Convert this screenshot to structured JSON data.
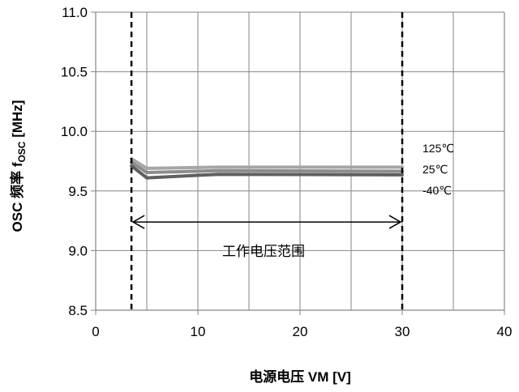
{
  "chart_data": {
    "type": "line",
    "xlabel": "电源电压 VM [V]",
    "ylabel_main": "OSC 频率 f",
    "ylabel_sub": "OSC",
    "ylabel_unit": " [MHz]",
    "xlim": [
      0,
      40
    ],
    "ylim": [
      8.5,
      11.0
    ],
    "xticks": [
      0,
      10,
      20,
      30,
      40
    ],
    "xtick_labels": [
      "0",
      "10",
      "20",
      "30",
      "40"
    ],
    "yticks": [
      8.5,
      9.0,
      9.5,
      10.0,
      10.5,
      11.0
    ],
    "ytick_labels": [
      "8.5",
      "9.0",
      "9.5",
      "10.0",
      "10.5",
      "11.0"
    ],
    "grid": true,
    "series": [
      {
        "name": "125℃",
        "color": "#a6a6a6",
        "x": [
          3.5,
          5,
          12,
          30
        ],
        "y": [
          9.77,
          9.69,
          9.7,
          9.7
        ]
      },
      {
        "name": "25℃",
        "color": "#8c8c8c",
        "x": [
          3.5,
          5,
          12,
          30
        ],
        "y": [
          9.74,
          9.655,
          9.67,
          9.665
        ]
      },
      {
        "name": "-40℃",
        "color": "#5f5f5f",
        "x": [
          3.5,
          5,
          12,
          30
        ],
        "y": [
          9.71,
          9.61,
          9.64,
          9.635
        ]
      }
    ],
    "vlines": [
      3.5,
      30
    ],
    "range_arrow": {
      "x_start": 3.5,
      "x_end": 30,
      "y": 9.24
    },
    "annotation": "工作电压范围"
  },
  "colors": {
    "grid": "#868686",
    "axis": "#868686",
    "dashed": "#000000"
  }
}
